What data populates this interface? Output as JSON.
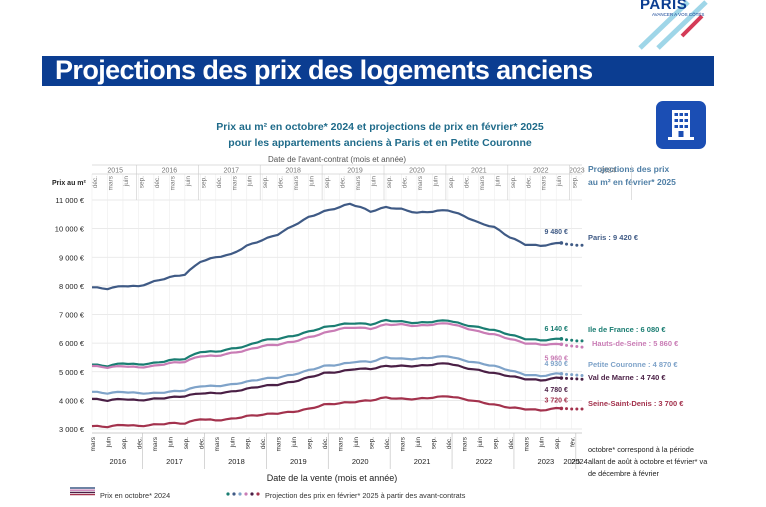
{
  "logo": {
    "name": "PARIS",
    "tagline": "AVANCER A VOS CÔTÉS"
  },
  "page_title": "Projections des prix des logements anciens",
  "icon": "building-icon",
  "colors": {
    "title_bar": "#0b3d91",
    "chart_title": "#1f6b8a"
  },
  "chart_data": {
    "type": "line",
    "title_line1": "Prix au m² en octobre* 2024 et projections de prix en février* 2025",
    "title_line2": "pour les appartements anciens à Paris et en Petite Couronne",
    "top_axis_label": "Date de l'avant-contrat (mois et année)",
    "top_years": [
      "2015",
      "2016",
      "2017",
      "2018",
      "2019",
      "2020",
      "2021",
      "2022",
      "2023",
      "2024"
    ],
    "bottom_years": [
      "2016",
      "2017",
      "2018",
      "2019",
      "2020",
      "2021",
      "2022",
      "2023",
      "2024",
      "2025"
    ],
    "bottom_months": [
      "mars",
      "juin",
      "sep.",
      "déc."
    ],
    "bottom_last_month": "fév.",
    "xlabel": "Date de la vente (mois et année)",
    "ylabel": "Prix au m²",
    "ylim": [
      3000,
      11000
    ],
    "y_ticks": [
      "3 000 €",
      "4 000 €",
      "5 000 €",
      "6 000 €",
      "7 000 €",
      "8 000 €",
      "9 000 €",
      "10 000 €",
      "11 000 €"
    ],
    "projection_header": "Projections des prix au m² en février* 2025",
    "x_start": "2016-03",
    "series": [
      {
        "name": "Paris",
        "color": "#3f5a85",
        "anchors": [
          [
            0,
            7950
          ],
          [
            3,
            7900
          ],
          [
            6,
            8000
          ],
          [
            9,
            7980
          ],
          [
            12,
            8150
          ],
          [
            15,
            8300
          ],
          [
            18,
            8400
          ],
          [
            21,
            8850
          ],
          [
            24,
            9000
          ],
          [
            27,
            9100
          ],
          [
            30,
            9400
          ],
          [
            33,
            9600
          ],
          [
            36,
            9800
          ],
          [
            39,
            10100
          ],
          [
            42,
            10400
          ],
          [
            45,
            10600
          ],
          [
            48,
            10750
          ],
          [
            50,
            10870
          ],
          [
            52,
            10750
          ],
          [
            54,
            10600
          ],
          [
            57,
            10750
          ],
          [
            60,
            10680
          ],
          [
            63,
            10550
          ],
          [
            66,
            10600
          ],
          [
            69,
            10650
          ],
          [
            72,
            10450
          ],
          [
            75,
            10200
          ],
          [
            78,
            10050
          ],
          [
            81,
            9700
          ],
          [
            84,
            9450
          ],
          [
            87,
            9400
          ],
          [
            90,
            9480
          ],
          [
            91,
            9500
          ]
        ],
        "projection": [
          [
            92,
            9460
          ],
          [
            93,
            9440
          ],
          [
            94,
            9420
          ],
          [
            95,
            9420
          ]
        ],
        "oct_label": "9 480 €",
        "proj_label": "Paris : 9 420 €"
      },
      {
        "name": "Ile de France",
        "color": "#1a7d72",
        "anchors": [
          [
            0,
            5250
          ],
          [
            3,
            5200
          ],
          [
            6,
            5300
          ],
          [
            9,
            5250
          ],
          [
            12,
            5300
          ],
          [
            15,
            5400
          ],
          [
            18,
            5450
          ],
          [
            21,
            5700
          ],
          [
            24,
            5700
          ],
          [
            27,
            5800
          ],
          [
            30,
            5900
          ],
          [
            33,
            6100
          ],
          [
            36,
            6150
          ],
          [
            39,
            6250
          ],
          [
            42,
            6400
          ],
          [
            45,
            6550
          ],
          [
            48,
            6650
          ],
          [
            51,
            6700
          ],
          [
            54,
            6650
          ],
          [
            57,
            6800
          ],
          [
            60,
            6750
          ],
          [
            63,
            6700
          ],
          [
            66,
            6750
          ],
          [
            69,
            6800
          ],
          [
            72,
            6650
          ],
          [
            75,
            6550
          ],
          [
            78,
            6450
          ],
          [
            81,
            6300
          ],
          [
            84,
            6150
          ],
          [
            87,
            6100
          ],
          [
            90,
            6140
          ],
          [
            91,
            6150
          ]
        ],
        "projection": [
          [
            92,
            6120
          ],
          [
            93,
            6100
          ],
          [
            94,
            6080
          ],
          [
            95,
            6080
          ]
        ],
        "oct_label": "6 140 €",
        "proj_label": "Ile de France : 6 080 €"
      },
      {
        "name": "Hauts-de-Seine",
        "color": "#c97cb5",
        "anchors": [
          [
            0,
            5200
          ],
          [
            3,
            5150
          ],
          [
            6,
            5200
          ],
          [
            9,
            5150
          ],
          [
            12,
            5200
          ],
          [
            15,
            5300
          ],
          [
            18,
            5350
          ],
          [
            21,
            5550
          ],
          [
            24,
            5550
          ],
          [
            27,
            5650
          ],
          [
            30,
            5750
          ],
          [
            33,
            5900
          ],
          [
            36,
            5950
          ],
          [
            39,
            6050
          ],
          [
            42,
            6200
          ],
          [
            45,
            6350
          ],
          [
            48,
            6500
          ],
          [
            51,
            6550
          ],
          [
            54,
            6500
          ],
          [
            57,
            6650
          ],
          [
            60,
            6650
          ],
          [
            63,
            6600
          ],
          [
            66,
            6650
          ],
          [
            69,
            6700
          ],
          [
            72,
            6550
          ],
          [
            75,
            6400
          ],
          [
            78,
            6300
          ],
          [
            81,
            6150
          ],
          [
            84,
            6000
          ],
          [
            87,
            5950
          ],
          [
            90,
            5960
          ],
          [
            91,
            5960
          ]
        ],
        "projection": [
          [
            92,
            5920
          ],
          [
            93,
            5900
          ],
          [
            94,
            5880
          ],
          [
            95,
            5860
          ]
        ],
        "oct_label": "5 960 €",
        "proj_label": "Hauts-de-Seine : 5 860 €"
      },
      {
        "name": "Petite Couronne",
        "color": "#7fa3c9",
        "anchors": [
          [
            0,
            4300
          ],
          [
            3,
            4250
          ],
          [
            6,
            4300
          ],
          [
            9,
            4250
          ],
          [
            12,
            4250
          ],
          [
            15,
            4300
          ],
          [
            18,
            4350
          ],
          [
            21,
            4500
          ],
          [
            24,
            4500
          ],
          [
            27,
            4550
          ],
          [
            30,
            4650
          ],
          [
            33,
            4750
          ],
          [
            36,
            4800
          ],
          [
            39,
            4900
          ],
          [
            42,
            5050
          ],
          [
            45,
            5200
          ],
          [
            48,
            5250
          ],
          [
            51,
            5350
          ],
          [
            54,
            5350
          ],
          [
            57,
            5500
          ],
          [
            60,
            5450
          ],
          [
            63,
            5450
          ],
          [
            66,
            5500
          ],
          [
            69,
            5550
          ],
          [
            72,
            5400
          ],
          [
            75,
            5300
          ],
          [
            78,
            5200
          ],
          [
            81,
            5050
          ],
          [
            84,
            4900
          ],
          [
            87,
            4850
          ],
          [
            90,
            4930
          ],
          [
            91,
            4930
          ]
        ],
        "projection": [
          [
            92,
            4910
          ],
          [
            93,
            4900
          ],
          [
            94,
            4880
          ],
          [
            95,
            4870
          ]
        ],
        "oct_label": "4 930 €",
        "proj_label": "Petite Couronne : 4 870 €"
      },
      {
        "name": "Val de Marne",
        "color": "#4a1f45",
        "anchors": [
          [
            0,
            4050
          ],
          [
            3,
            4000
          ],
          [
            6,
            4050
          ],
          [
            9,
            4000
          ],
          [
            12,
            4050
          ],
          [
            15,
            4100
          ],
          [
            18,
            4150
          ],
          [
            21,
            4250
          ],
          [
            24,
            4250
          ],
          [
            27,
            4300
          ],
          [
            30,
            4400
          ],
          [
            33,
            4500
          ],
          [
            36,
            4550
          ],
          [
            39,
            4650
          ],
          [
            42,
            4800
          ],
          [
            45,
            4950
          ],
          [
            48,
            5000
          ],
          [
            51,
            5100
          ],
          [
            54,
            5100
          ],
          [
            57,
            5200
          ],
          [
            60,
            5200
          ],
          [
            63,
            5200
          ],
          [
            66,
            5250
          ],
          [
            69,
            5300
          ],
          [
            72,
            5150
          ],
          [
            75,
            5050
          ],
          [
            78,
            4950
          ],
          [
            81,
            4850
          ],
          [
            84,
            4750
          ],
          [
            87,
            4700
          ],
          [
            90,
            4780
          ],
          [
            91,
            4780
          ]
        ],
        "projection": [
          [
            92,
            4770
          ],
          [
            93,
            4760
          ],
          [
            94,
            4750
          ],
          [
            95,
            4740
          ]
        ],
        "oct_label": "4 780 €",
        "proj_label": "Val de Marne : 4 740 €"
      },
      {
        "name": "Seine-Saint-Denis",
        "color": "#a3324d",
        "anchors": [
          [
            0,
            3100
          ],
          [
            3,
            3080
          ],
          [
            6,
            3150
          ],
          [
            9,
            3100
          ],
          [
            12,
            3150
          ],
          [
            15,
            3200
          ],
          [
            18,
            3200
          ],
          [
            21,
            3350
          ],
          [
            24,
            3300
          ],
          [
            27,
            3350
          ],
          [
            30,
            3450
          ],
          [
            33,
            3500
          ],
          [
            36,
            3550
          ],
          [
            39,
            3600
          ],
          [
            42,
            3700
          ],
          [
            45,
            3850
          ],
          [
            48,
            3900
          ],
          [
            51,
            3950
          ],
          [
            54,
            4000
          ],
          [
            57,
            4100
          ],
          [
            60,
            4050
          ],
          [
            63,
            4050
          ],
          [
            66,
            4100
          ],
          [
            69,
            4150
          ],
          [
            72,
            4050
          ],
          [
            75,
            3950
          ],
          [
            78,
            3850
          ],
          [
            81,
            3750
          ],
          [
            84,
            3700
          ],
          [
            87,
            3650
          ],
          [
            90,
            3720
          ],
          [
            91,
            3720
          ]
        ],
        "projection": [
          [
            92,
            3710
          ],
          [
            93,
            3700
          ],
          [
            94,
            3700
          ],
          [
            95,
            3700
          ]
        ],
        "oct_label": "3 720 €",
        "proj_label": "Seine-Saint-Denis : 3 700 €"
      }
    ],
    "legend": {
      "actual": "Prix en octobre* 2024",
      "projection": "Projection des prix en février* 2025 à partir des avant-contrats"
    },
    "note": "octobre* correspond à la période allant de août à octobre et février* va de décembre à février"
  }
}
